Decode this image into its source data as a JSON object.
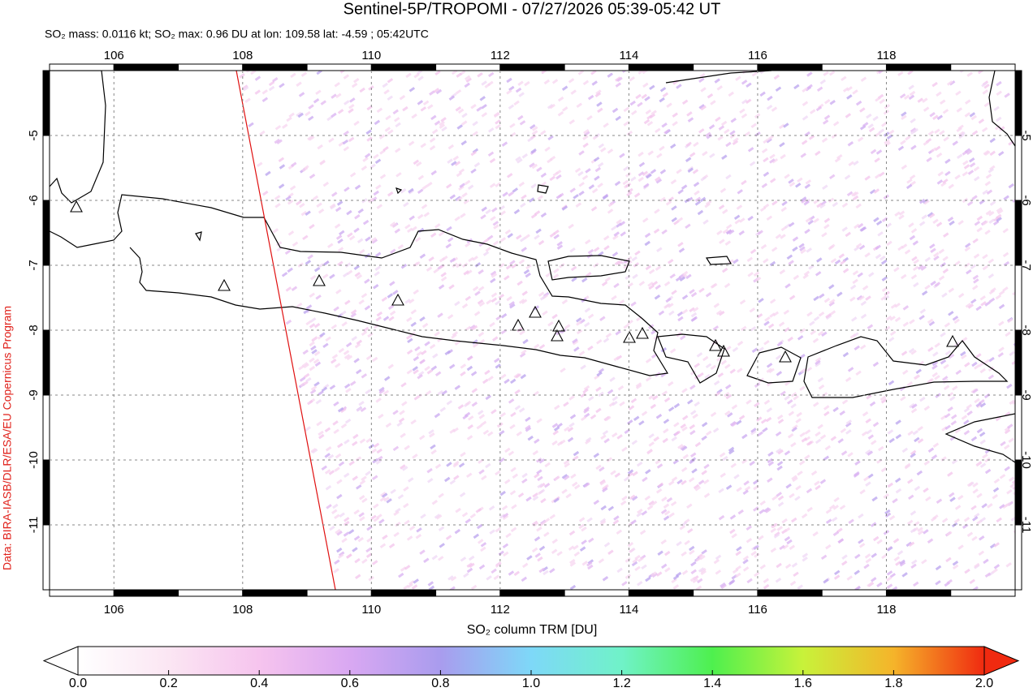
{
  "title": "Sentinel-5P/TROPOMI - 07/27/2026 05:39-05:42 UT",
  "subtitle": "SO₂ mass: 0.0116 kt; SO₂ max: 0.96 DU at lon: 109.58 lat: -4.59 ; 05:42UTC",
  "credit": "Data: BIRA-IASB/DLR/ESA/EU Copernicus Program",
  "map": {
    "xlim": [
      105,
      120
    ],
    "ylim": [
      -4,
      -12
    ],
    "xticks": [
      106,
      108,
      110,
      112,
      114,
      116,
      118
    ],
    "yticks": [
      -5,
      -6,
      -7,
      -8,
      -9,
      -10,
      -11
    ],
    "grid": true
  },
  "colorbar": {
    "title": "SO₂ column TRM [DU]",
    "lim": [
      0,
      2
    ],
    "ticks": [
      {
        "value": 0,
        "label": "0.0"
      },
      0.2,
      0.4,
      0.6,
      0.8,
      {
        "value": 1,
        "label": "1.0"
      },
      1.2,
      1.4,
      1.6,
      1.8,
      {
        "value": 2,
        "label": "2.0"
      }
    ]
  }
}
